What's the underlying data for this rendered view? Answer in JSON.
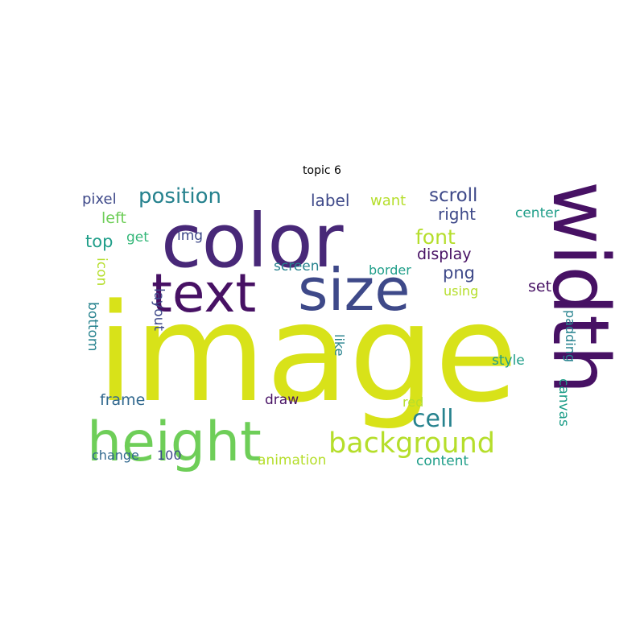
{
  "title": "topic 6",
  "palette": {
    "dark_purple": "#471164",
    "purple": "#482878",
    "indigo": "#3e4989",
    "blue": "#31688e",
    "teal": "#26828e",
    "green_teal": "#1f9e89",
    "green": "#35b779",
    "light_green": "#6ece58",
    "lime": "#b5de2b",
    "yellow": "#d8e219"
  },
  "words": [
    {
      "text": "image"
    },
    {
      "text": "color"
    },
    {
      "text": "width"
    },
    {
      "text": "size"
    },
    {
      "text": "text"
    },
    {
      "text": "height"
    },
    {
      "text": "background"
    },
    {
      "text": "position"
    },
    {
      "text": "cell"
    },
    {
      "text": "font"
    },
    {
      "text": "scroll"
    },
    {
      "text": "label"
    },
    {
      "text": "want"
    },
    {
      "text": "pixel"
    },
    {
      "text": "left"
    },
    {
      "text": "right"
    },
    {
      "text": "center"
    },
    {
      "text": "top"
    },
    {
      "text": "get"
    },
    {
      "text": "img"
    },
    {
      "text": "display"
    },
    {
      "text": "png"
    },
    {
      "text": "screen"
    },
    {
      "text": "border"
    },
    {
      "text": "icon"
    },
    {
      "text": "using"
    },
    {
      "text": "set"
    },
    {
      "text": "layout"
    },
    {
      "text": "bottom"
    },
    {
      "text": "like"
    },
    {
      "text": "padding"
    },
    {
      "text": "style"
    },
    {
      "text": "frame"
    },
    {
      "text": "draw"
    },
    {
      "text": "red"
    },
    {
      "text": "canvas"
    },
    {
      "text": "change"
    },
    {
      "text": "100"
    },
    {
      "text": "animation"
    },
    {
      "text": "content"
    }
  ]
}
